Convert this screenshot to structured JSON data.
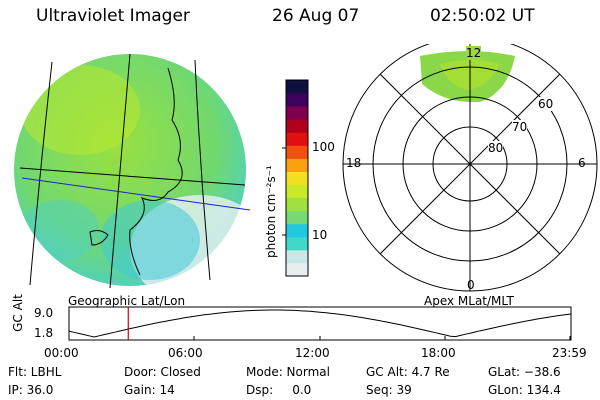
{
  "header": {
    "instrument": "Ultraviolet Imager",
    "date": "26 Aug 07",
    "time": "02:50:02 UT"
  },
  "colorbar": {
    "unit_label": "photon cm⁻²s⁻¹",
    "tick_100": "100",
    "tick_10": "10",
    "colors": [
      "#e8eef0",
      "#c8e8e8",
      "#40d8c8",
      "#20c8e0",
      "#78d878",
      "#a0e040",
      "#c8e828",
      "#f0e020",
      "#f8a010",
      "#f05010",
      "#e01010",
      "#b00020",
      "#800050",
      "#400060",
      "#101040"
    ]
  },
  "geo_panel": {
    "title": "Geographic Lat/Lon"
  },
  "polar_panel": {
    "title": "Apex MLat/MLT",
    "mlt_top": "12",
    "mlt_left": "18",
    "mlt_right": "6",
    "mlt_bottom": "0",
    "lat_60": "60",
    "lat_70": "70",
    "lat_80": "80"
  },
  "altitude_plot": {
    "ylabel": "GC Alt",
    "y_top": "9.0",
    "y_bottom": "1.8",
    "x_ticks": [
      "00:00",
      "06:00",
      "12:00",
      "18:00",
      "23:59"
    ],
    "marker_time": "02:50",
    "marker_color": "#d00000"
  },
  "info": {
    "flt": "Flt: LBHL",
    "ip": "IP: 36.0",
    "door": "Door: Closed",
    "gain": "Gain: 14",
    "mode": "Mode: Normal",
    "dsp": "Dsp:     0.0",
    "gcalt": "GC Alt: 4.7 Re",
    "seq": "Seq: 39",
    "glat": "GLat: −38.6",
    "glon": "GLon: 134.4"
  }
}
